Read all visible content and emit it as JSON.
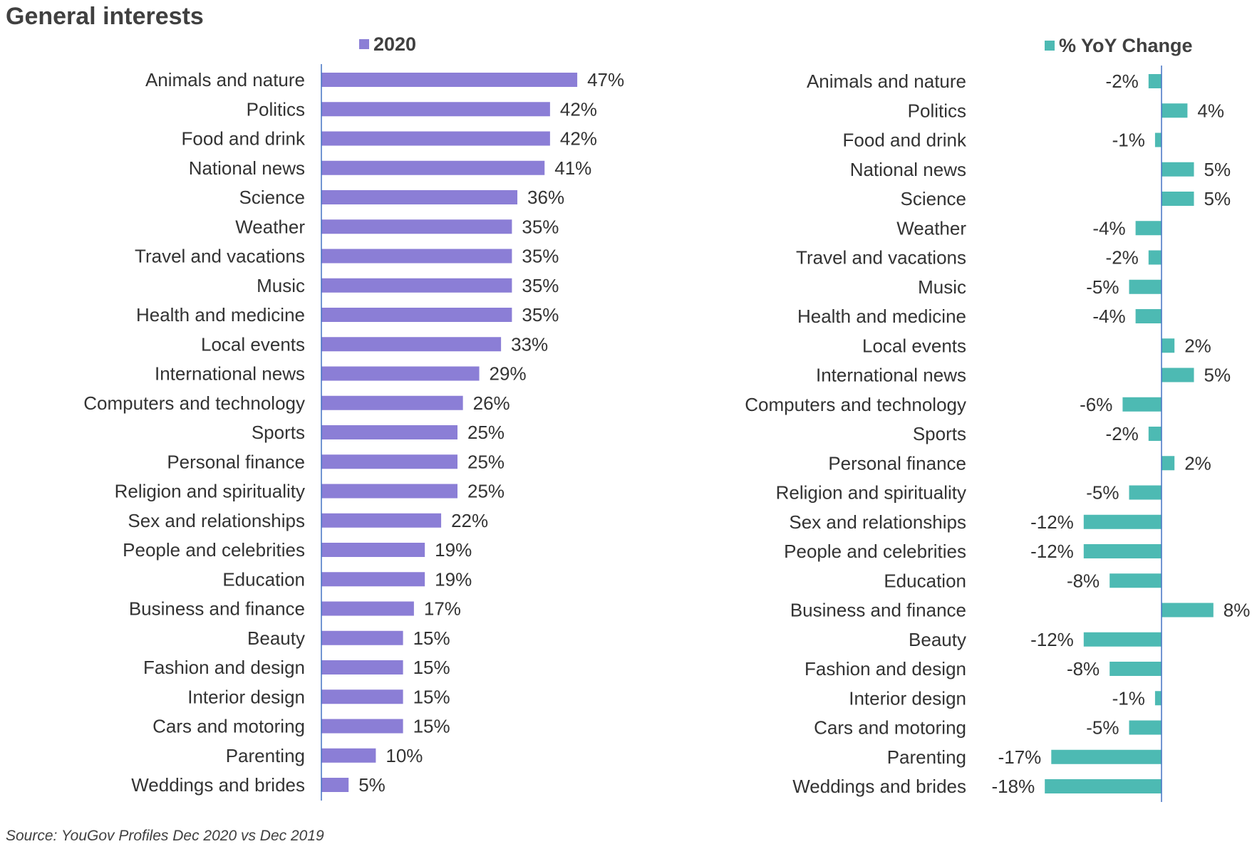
{
  "page": {
    "title": "General interests",
    "source": "Source: YouGov Profiles Dec 2020 vs Dec 2019"
  },
  "chart_data": [
    {
      "type": "bar",
      "orientation": "horizontal",
      "legend": "2020",
      "legend_position": "top",
      "color": "#8b7ed6",
      "categories": [
        "Animals and nature",
        "Politics",
        "Food and drink",
        "National news",
        "Science",
        "Weather",
        "Travel and vacations",
        "Music",
        "Health and medicine",
        "Local events",
        "International news",
        "Computers and technology",
        "Sports",
        "Personal finance",
        "Religion and spirituality",
        "Sex and relationships",
        "People and celebrities",
        "Education",
        "Business and finance",
        "Beauty",
        "Fashion and design",
        "Interior design",
        "Cars and motoring",
        "Parenting",
        "Weddings and brides"
      ],
      "series": [
        {
          "name": "2020",
          "values": [
            47,
            42,
            42,
            41,
            36,
            35,
            35,
            35,
            35,
            33,
            29,
            26,
            25,
            25,
            25,
            22,
            19,
            19,
            17,
            15,
            15,
            15,
            15,
            10,
            5
          ]
        }
      ],
      "labels": [
        "47%",
        "42%",
        "42%",
        "41%",
        "36%",
        "35%",
        "35%",
        "35%",
        "35%",
        "33%",
        "29%",
        "26%",
        "25%",
        "25%",
        "25%",
        "22%",
        "19%",
        "19%",
        "17%",
        "15%",
        "15%",
        "15%",
        "15%",
        "10%",
        "5%"
      ],
      "xlim": [
        0,
        50
      ],
      "grid": false
    },
    {
      "type": "bar",
      "orientation": "horizontal",
      "legend": "% YoY Change",
      "legend_position": "top",
      "color": "#4dbab3",
      "categories": [
        "Animals and nature",
        "Politics",
        "Food and drink",
        "National news",
        "Science",
        "Weather",
        "Travel and vacations",
        "Music",
        "Health and medicine",
        "Local events",
        "International news",
        "Computers and technology",
        "Sports",
        "Personal finance",
        "Religion and spirituality",
        "Sex and relationships",
        "People and celebrities",
        "Education",
        "Business and finance",
        "Beauty",
        "Fashion and design",
        "Interior design",
        "Cars and motoring",
        "Parenting",
        "Weddings and brides"
      ],
      "series": [
        {
          "name": "% YoY Change",
          "values": [
            -2,
            4,
            -1,
            5,
            5,
            -4,
            -2,
            -5,
            -4,
            2,
            5,
            -6,
            -2,
            2,
            -5,
            -12,
            -12,
            -8,
            8,
            -12,
            -8,
            -1,
            -5,
            -17,
            -18
          ]
        }
      ],
      "labels": [
        "-2%",
        "4%",
        "-1%",
        "5%",
        "5%",
        "-4%",
        "-2%",
        "-5%",
        "-4%",
        "2%",
        "5%",
        "-6%",
        "-2%",
        "2%",
        "-5%",
        "-12%",
        "-12%",
        "-8%",
        "8%",
        "-12%",
        "-8%",
        "-1%",
        "-5%",
        "-17%",
        "-18%"
      ],
      "xlim": [
        -20,
        10
      ],
      "grid": false
    }
  ]
}
